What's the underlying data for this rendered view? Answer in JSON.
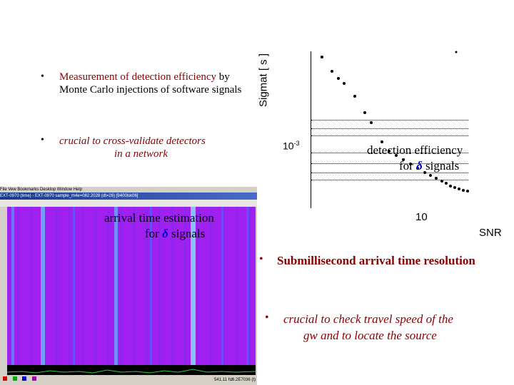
{
  "bullets_left": [
    {
      "marker": "•",
      "highlight": "Measurement of detection efficiency",
      "rest": " by Monte Carlo injections of software signals"
    },
    {
      "marker": "•",
      "line1": "crucial to cross-validate detectors",
      "line2": "in a network"
    }
  ],
  "plot": {
    "ylabel": "Sigmat [ s ]",
    "ytick": "10",
    "ytick_exp": "-3",
    "xtick": "10",
    "xlabel": "SNR",
    "caption_line1": "detection efficiency",
    "caption_for": "for",
    "caption_delta": "δ",
    "caption_signals": "signals"
  },
  "window": {
    "menu": "File  Vew  Bookmarks  Desktop  Window  Help",
    "title": "EXT-0970 (time) - EXT-0970 sample_m4e=082.2028 (dt=26) [9400lsk06]",
    "status_left": "541.11  hz",
    "status_right": "6.2E7036 (t)"
  },
  "arrival": {
    "line1": "arrival time estimation",
    "for": "for",
    "delta": "δ",
    "signals": "signals"
  },
  "bullets_right": [
    {
      "marker": "•",
      "text": "Submillisecond arrival time resolution"
    },
    {
      "marker": "•",
      "line1": "crucial to check travel speed of the",
      "line2": "gw and to locate the source"
    }
  ]
}
